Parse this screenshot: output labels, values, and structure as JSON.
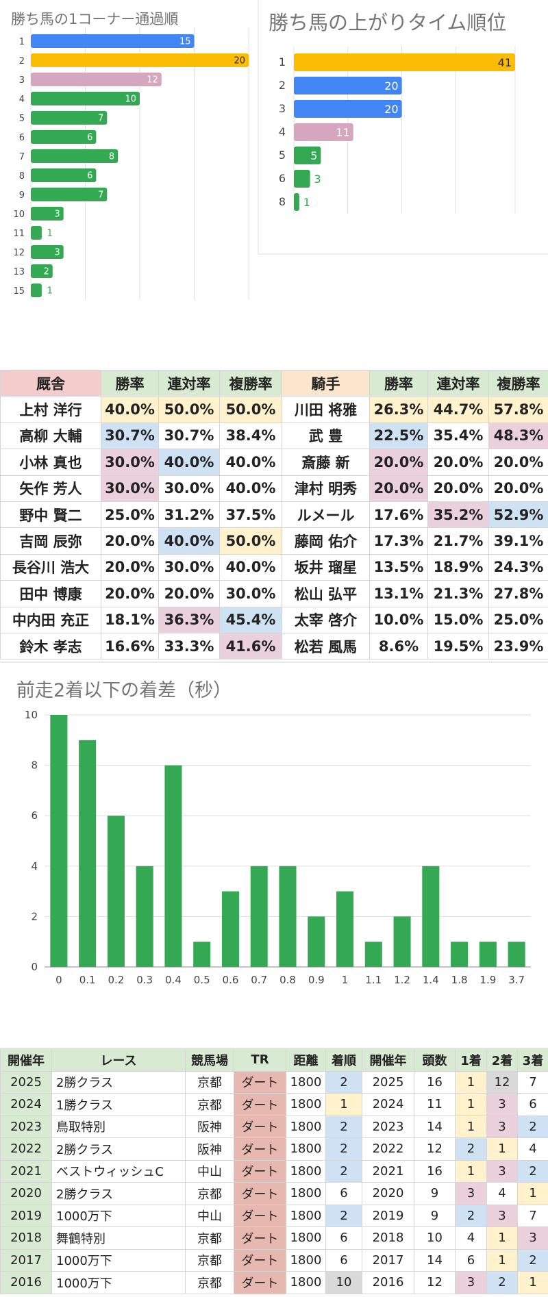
{
  "chart_data": [
    {
      "type": "bar",
      "orientation": "horizontal",
      "title": "勝ち馬の1コーナー通過順",
      "categories": [
        "1",
        "2",
        "3",
        "4",
        "5",
        "6",
        "7",
        "8",
        "9",
        "10",
        "11",
        "12",
        "13",
        "15"
      ],
      "values": [
        15,
        20,
        12,
        10,
        7,
        6,
        8,
        6,
        7,
        3,
        1,
        3,
        2,
        1
      ],
      "bar_colors": [
        "#4285f4",
        "#fbbc04",
        "#d5a6bd",
        "#34a853",
        "#34a853",
        "#34a853",
        "#34a853",
        "#34a853",
        "#34a853",
        "#34a853",
        "#34a853",
        "#34a853",
        "#34a853",
        "#34a853"
      ],
      "xlim": [
        0,
        20
      ],
      "grid": true
    },
    {
      "type": "bar",
      "orientation": "horizontal",
      "title": "勝ち馬の上がりタイム順位",
      "categories": [
        "1",
        "2",
        "3",
        "4",
        "5",
        "6",
        "8"
      ],
      "values": [
        41,
        20,
        20,
        11,
        5,
        3,
        1
      ],
      "bar_colors": [
        "#fbbc04",
        "#4285f4",
        "#4285f4",
        "#d5a6bd",
        "#34a853",
        "#34a853",
        "#34a853"
      ],
      "xlim": [
        0,
        41
      ],
      "grid": true
    },
    {
      "type": "bar",
      "title": "前走2着以下の着差（秒）",
      "categories": [
        "0",
        "0.1",
        "0.2",
        "0.3",
        "0.4",
        "0.5",
        "0.6",
        "0.7",
        "0.8",
        "0.9",
        "1",
        "1.1",
        "1.2",
        "1.4",
        "1.8",
        "1.9",
        "3.7"
      ],
      "values": [
        10,
        9,
        6,
        4,
        8,
        1,
        3,
        4,
        4,
        2,
        3,
        1,
        2,
        4,
        1,
        1,
        1
      ],
      "ylim": [
        0,
        10
      ],
      "yticks": [
        0,
        2,
        4,
        6,
        8,
        10
      ],
      "bar_color": "#34a853",
      "grid": true
    },
    {
      "type": "table",
      "headers": [
        "厩舎",
        "勝率",
        "連対率",
        "複勝率",
        "騎手",
        "勝率",
        "連対率",
        "複勝率"
      ],
      "rows": [
        [
          "上村 洋行",
          "40.0%",
          "50.0%",
          "50.0%",
          "川田 将雅",
          "26.3%",
          "44.7%",
          "57.8%"
        ],
        [
          "高柳 大輔",
          "30.7%",
          "30.7%",
          "38.4%",
          "武 豊",
          "22.5%",
          "35.4%",
          "48.3%"
        ],
        [
          "小林 真也",
          "30.0%",
          "40.0%",
          "40.0%",
          "斎藤 新",
          "20.0%",
          "20.0%",
          "20.0%"
        ],
        [
          "矢作 芳人",
          "30.0%",
          "30.0%",
          "40.0%",
          "津村 明秀",
          "20.0%",
          "20.0%",
          "20.0%"
        ],
        [
          "野中 賢二",
          "25.0%",
          "31.2%",
          "37.5%",
          "ルメール",
          "17.6%",
          "35.2%",
          "52.9%"
        ],
        [
          "吉岡 辰弥",
          "20.0%",
          "40.0%",
          "50.0%",
          "藤岡 佑介",
          "17.3%",
          "21.7%",
          "39.1%"
        ],
        [
          "長谷川 浩大",
          "20.0%",
          "30.0%",
          "40.0%",
          "坂井 瑠星",
          "13.5%",
          "18.9%",
          "24.3%"
        ],
        [
          "田中 博康",
          "20.0%",
          "20.0%",
          "30.0%",
          "松山 弘平",
          "13.1%",
          "21.3%",
          "27.8%"
        ],
        [
          "中内田 充正",
          "18.1%",
          "36.3%",
          "45.4%",
          "太宰 啓介",
          "10.0%",
          "15.0%",
          "25.0%"
        ],
        [
          "鈴木 孝志",
          "16.6%",
          "33.3%",
          "41.6%",
          "松若 風馬",
          "8.6%",
          "19.5%",
          "23.9%"
        ]
      ],
      "highlights": [
        [
          "",
          "y",
          "y",
          "y",
          "",
          "y",
          "y",
          "y"
        ],
        [
          "",
          "b",
          "",
          "",
          "",
          "b",
          "",
          "p"
        ],
        [
          "",
          "p",
          "b",
          "",
          "",
          "p",
          "",
          ""
        ],
        [
          "",
          "p",
          "",
          "",
          "",
          "p",
          "",
          ""
        ],
        [
          "",
          "",
          "",
          "",
          "",
          "",
          "p",
          "b"
        ],
        [
          "",
          "",
          "b",
          "y",
          "",
          "",
          "",
          ""
        ],
        [
          "",
          "",
          "",
          "",
          "",
          "",
          "",
          ""
        ],
        [
          "",
          "",
          "",
          "",
          "",
          "",
          "",
          ""
        ],
        [
          "",
          "",
          "p",
          "b",
          "",
          "",
          "",
          ""
        ],
        [
          "",
          "",
          "",
          "p",
          "",
          "",
          "",
          ""
        ]
      ]
    },
    {
      "type": "table",
      "headers": [
        "開催年",
        "レース",
        "競馬場",
        "TR",
        "距離",
        "着順",
        "開催年",
        "頭数",
        "1着",
        "2着",
        "3着"
      ],
      "rows": [
        [
          "2025",
          "2勝クラス",
          "京都",
          "ダート",
          "1800",
          "2",
          "2025",
          "16",
          "1",
          "12",
          "7"
        ],
        [
          "2024",
          "1勝クラス",
          "京都",
          "ダート",
          "1800",
          "1",
          "2024",
          "11",
          "1",
          "3",
          "6"
        ],
        [
          "2023",
          "鳥取特別",
          "阪神",
          "ダート",
          "1800",
          "2",
          "2023",
          "14",
          "1",
          "3",
          "2"
        ],
        [
          "2022",
          "2勝クラス",
          "阪神",
          "ダート",
          "1800",
          "2",
          "2022",
          "12",
          "2",
          "1",
          "4"
        ],
        [
          "2021",
          "ベストウィッシュC",
          "中山",
          "ダート",
          "1800",
          "2",
          "2021",
          "16",
          "1",
          "3",
          "2"
        ],
        [
          "2020",
          "2勝クラス",
          "京都",
          "ダート",
          "1800",
          "6",
          "2020",
          "9",
          "3",
          "4",
          "1"
        ],
        [
          "2019",
          "1000万下",
          "中山",
          "ダート",
          "1800",
          "2",
          "2019",
          "9",
          "2",
          "3",
          "7"
        ],
        [
          "2018",
          "舞鶴特別",
          "京都",
          "ダート",
          "1800",
          "6",
          "2018",
          "10",
          "4",
          "1",
          "3"
        ],
        [
          "2017",
          "1000万下",
          "京都",
          "ダート",
          "1800",
          "6",
          "2017",
          "14",
          "6",
          "1",
          "2"
        ],
        [
          "2016",
          "1000万下",
          "京都",
          "ダート",
          "1800",
          "10",
          "2016",
          "12",
          "3",
          "2",
          "1"
        ]
      ],
      "highlights": [
        [
          "",
          "",
          "",
          "",
          "",
          "b",
          "",
          "",
          "y",
          "g",
          ""
        ],
        [
          "",
          "",
          "",
          "",
          "",
          "y",
          "",
          "",
          "y",
          "p",
          ""
        ],
        [
          "",
          "",
          "",
          "",
          "",
          "b",
          "",
          "",
          "y",
          "p",
          "b"
        ],
        [
          "",
          "",
          "",
          "",
          "",
          "b",
          "",
          "",
          "b",
          "y",
          ""
        ],
        [
          "",
          "",
          "",
          "",
          "",
          "b",
          "",
          "",
          "y",
          "p",
          "b"
        ],
        [
          "",
          "",
          "",
          "",
          "",
          "",
          "",
          "",
          "p",
          "",
          "y"
        ],
        [
          "",
          "",
          "",
          "",
          "",
          "b",
          "",
          "",
          "b",
          "p",
          ""
        ],
        [
          "",
          "",
          "",
          "",
          "",
          "",
          "",
          "",
          "",
          "y",
          "p"
        ],
        [
          "",
          "",
          "",
          "",
          "",
          "",
          "",
          "",
          "",
          "y",
          "b"
        ],
        [
          "",
          "",
          "",
          "",
          "",
          "g",
          "",
          "",
          "p",
          "b",
          "y"
        ]
      ]
    }
  ]
}
